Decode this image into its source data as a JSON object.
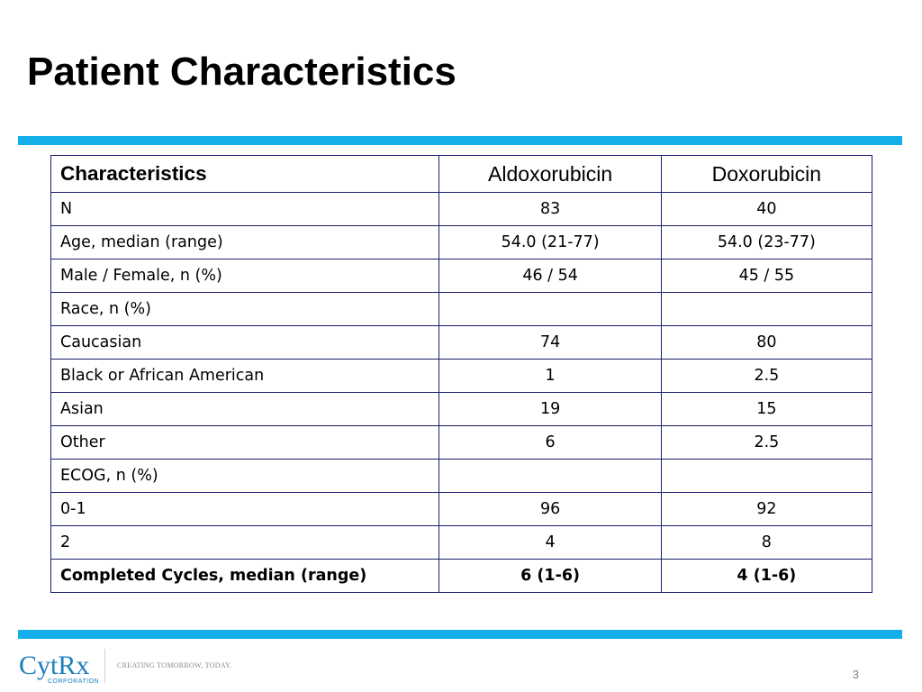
{
  "slide": {
    "title": "Patient Characteristics",
    "page_number": "3",
    "accent_color": "#14aee9",
    "table_border_color": "#1a1f6e"
  },
  "table": {
    "headers": [
      "Characteristics",
      "Aldoxorubicin",
      "Doxorubicin"
    ],
    "rows": [
      {
        "label": "N",
        "aldo": "83",
        "doxo": "40",
        "indent": 0,
        "bold": false
      },
      {
        "label": "Age, median (range)",
        "aldo": "54.0 (21-77)",
        "doxo": "54.0 (23-77)",
        "indent": 0,
        "bold": false
      },
      {
        "label": "Male / Female, n (%)",
        "aldo": "46 / 54",
        "doxo": "45 / 55",
        "indent": 0,
        "bold": false
      },
      {
        "label": "Race, n (%)",
        "aldo": "",
        "doxo": "",
        "indent": 0,
        "bold": false
      },
      {
        "label": "Caucasian",
        "aldo": "74",
        "doxo": "80",
        "indent": 1,
        "bold": false
      },
      {
        "label": "Black or African American",
        "aldo": "1",
        "doxo": "2.5",
        "indent": 1,
        "bold": false
      },
      {
        "label": "Asian",
        "aldo": "19",
        "doxo": "15",
        "indent": 1,
        "bold": false
      },
      {
        "label": "Other",
        "aldo": "6",
        "doxo": "2.5",
        "indent": 1,
        "bold": false
      },
      {
        "label": "ECOG, n (%)",
        "aldo": "",
        "doxo": "",
        "indent": 0,
        "bold": false
      },
      {
        "label": "0-1",
        "aldo": "96",
        "doxo": "92",
        "indent": 2,
        "bold": false
      },
      {
        "label": "2",
        "aldo": "4",
        "doxo": "8",
        "indent": 2,
        "bold": false
      },
      {
        "label": "Completed Cycles, median (range)",
        "aldo": "6 (1-6)",
        "doxo": "4 (1-6)",
        "indent": 0,
        "bold": true
      }
    ]
  },
  "footer": {
    "logo_text": "CytRx",
    "logo_subtext": "CORPORATION",
    "tagline": "CREATING TOMORROW, TODAY.",
    "logo_color": "#1e7fc0"
  }
}
